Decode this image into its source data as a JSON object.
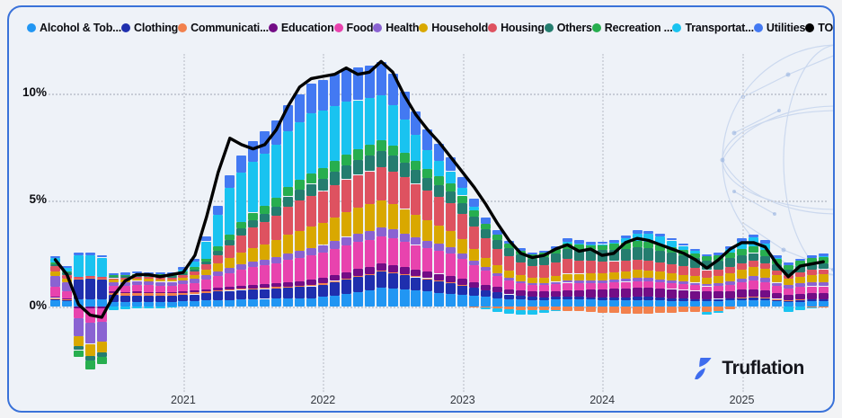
{
  "legend": {
    "items": [
      {
        "label": "Alcohol & Tob...",
        "color": "#2196f3"
      },
      {
        "label": "Clothing",
        "color": "#1f2fae"
      },
      {
        "label": "Communicati...",
        "color": "#f2814d"
      },
      {
        "label": "Education",
        "color": "#730d86"
      },
      {
        "label": "Food",
        "color": "#e843ae"
      },
      {
        "label": "Health",
        "color": "#8a63d2"
      },
      {
        "label": "Household",
        "color": "#d9a800"
      },
      {
        "label": "Housing",
        "color": "#de5260"
      },
      {
        "label": "Others",
        "color": "#247d6f"
      },
      {
        "label": "Recreation ...",
        "color": "#27ae4f"
      },
      {
        "label": "Transportat...",
        "color": "#19c3f0"
      },
      {
        "label": "Utilities",
        "color": "#4379f2"
      },
      {
        "label": "TOTAL",
        "color": "#000000"
      }
    ]
  },
  "branding": {
    "logo_text": "Truflation"
  },
  "chart_data": {
    "type": "bar",
    "subtype": "stacked-bars-with-total-line",
    "grid": "dotted",
    "legend_position": "top",
    "ylim": [
      -3.5,
      12.5
    ],
    "y_ticks": [
      {
        "label": "10%",
        "value": 10
      },
      {
        "label": "5%",
        "value": 5
      },
      {
        "label": "0%",
        "value": 0
      }
    ],
    "x_ticks": [
      {
        "label": "2021",
        "month_index": 11
      },
      {
        "label": "2022",
        "month_index": 23
      },
      {
        "label": "2023",
        "month_index": 35
      },
      {
        "label": "2024",
        "month_index": 47
      },
      {
        "label": "2025",
        "month_index": 59
      }
    ],
    "months": [
      "2020-02",
      "2020-03",
      "2020-04",
      "2020-05",
      "2020-06",
      "2020-07",
      "2020-08",
      "2020-09",
      "2020-10",
      "2020-11",
      "2020-12",
      "2021-01",
      "2021-02",
      "2021-03",
      "2021-04",
      "2021-05",
      "2021-06",
      "2021-07",
      "2021-08",
      "2021-09",
      "2021-10",
      "2021-11",
      "2021-12",
      "2022-01",
      "2022-02",
      "2022-03",
      "2022-04",
      "2022-05",
      "2022-06",
      "2022-07",
      "2022-08",
      "2022-09",
      "2022-10",
      "2022-11",
      "2022-12",
      "2023-01",
      "2023-02",
      "2023-03",
      "2023-04",
      "2023-05",
      "2023-06",
      "2023-07",
      "2023-08",
      "2023-09",
      "2023-10",
      "2023-11",
      "2023-12",
      "2024-01",
      "2024-02",
      "2024-03",
      "2024-04",
      "2024-05",
      "2024-06",
      "2024-07",
      "2024-08",
      "2024-09",
      "2024-10",
      "2024-11",
      "2024-12",
      "2025-01",
      "2025-02",
      "2025-03",
      "2025-04",
      "2025-05",
      "2025-06",
      "2025-07",
      "2025-08"
    ],
    "series": [
      {
        "name": "Alcohol & Tob...",
        "color": "#2196f3",
        "values": [
          0.3,
          0.25,
          0.35,
          0.35,
          0.35,
          0.2,
          0.2,
          0.22,
          0.22,
          0.22,
          0.22,
          0.25,
          0.25,
          0.28,
          0.3,
          0.32,
          0.34,
          0.35,
          0.36,
          0.37,
          0.38,
          0.39,
          0.4,
          0.45,
          0.52,
          0.6,
          0.68,
          0.75,
          0.9,
          0.85,
          0.8,
          0.75,
          0.7,
          0.65,
          0.6,
          0.55,
          0.5,
          0.45,
          0.4,
          0.35,
          0.32,
          0.3,
          0.3,
          0.32,
          0.35,
          0.33,
          0.32,
          0.3,
          0.3,
          0.3,
          0.3,
          0.3,
          0.28,
          0.27,
          0.26,
          0.25,
          0.25,
          0.26,
          0.28,
          0.3,
          0.3,
          0.28,
          0.24,
          0.2,
          0.22,
          0.24,
          0.25
        ]
      },
      {
        "name": "Clothing",
        "color": "#1f2fae",
        "values": [
          0.08,
          0.06,
          0.9,
          0.95,
          0.9,
          0.35,
          0.3,
          0.3,
          0.28,
          0.28,
          0.28,
          0.3,
          0.32,
          0.36,
          0.4,
          0.42,
          0.44,
          0.45,
          0.46,
          0.48,
          0.5,
          0.52,
          0.55,
          0.58,
          0.62,
          0.66,
          0.7,
          0.72,
          0.73,
          0.7,
          0.66,
          0.62,
          0.58,
          0.54,
          0.5,
          0.45,
          0.38,
          0.32,
          0.26,
          0.22,
          0.18,
          0.15,
          0.14,
          0.13,
          0.12,
          0.12,
          0.12,
          0.12,
          0.13,
          0.14,
          0.15,
          0.15,
          0.14,
          0.13,
          0.12,
          0.11,
          0.1,
          0.1,
          0.11,
          0.12,
          0.12,
          0.11,
          0.09,
          0.08,
          0.09,
          0.1,
          0.1
        ]
      },
      {
        "name": "Communicati...",
        "color": "#f2814d",
        "values": [
          0.02,
          0.02,
          0.05,
          0.05,
          0.05,
          0.1,
          0.12,
          0.12,
          0.12,
          0.12,
          0.12,
          0.1,
          0.09,
          0.08,
          0.07,
          0.06,
          0.06,
          0.06,
          0.06,
          0.06,
          0.06,
          0.06,
          0.06,
          0.06,
          0.06,
          0.06,
          0.06,
          0.06,
          0.06,
          0.06,
          0.05,
          0.05,
          0.05,
          0.05,
          0.05,
          0.02,
          -0.02,
          -0.06,
          -0.1,
          -0.13,
          -0.15,
          -0.15,
          -0.16,
          -0.18,
          -0.2,
          -0.22,
          -0.25,
          -0.28,
          -0.3,
          -0.33,
          -0.35,
          -0.33,
          -0.3,
          -0.28,
          -0.26,
          -0.25,
          -0.25,
          -0.2,
          -0.12,
          0.02,
          0.05,
          0.04,
          0.03,
          0.03,
          0.02,
          -0.02,
          -0.05
        ]
      },
      {
        "name": "Education",
        "color": "#730d86",
        "values": [
          0.08,
          0.06,
          -0.1,
          -0.1,
          -0.1,
          0.05,
          0.05,
          0.06,
          0.06,
          0.06,
          0.06,
          0.08,
          0.09,
          0.1,
          0.12,
          0.13,
          0.15,
          0.15,
          0.16,
          0.18,
          0.2,
          0.22,
          0.25,
          0.26,
          0.28,
          0.3,
          0.32,
          0.33,
          0.34,
          0.34,
          0.33,
          0.32,
          0.31,
          0.3,
          0.3,
          0.28,
          0.27,
          0.26,
          0.25,
          0.25,
          0.25,
          0.25,
          0.26,
          0.28,
          0.3,
          0.32,
          0.35,
          0.38,
          0.4,
          0.42,
          0.45,
          0.44,
          0.43,
          0.42,
          0.4,
          0.38,
          0.35,
          0.34,
          0.34,
          0.35,
          0.35,
          0.34,
          0.28,
          0.25,
          0.27,
          0.28,
          0.3
        ]
      },
      {
        "name": "Food",
        "color": "#e843ae",
        "values": [
          0.45,
          0.35,
          -0.45,
          -0.65,
          -0.6,
          0.28,
          0.3,
          0.32,
          0.32,
          0.3,
          0.3,
          0.32,
          0.36,
          0.45,
          0.55,
          0.65,
          0.75,
          0.85,
          0.9,
          0.95,
          1.05,
          1.1,
          1.15,
          1.18,
          1.22,
          1.25,
          1.26,
          1.27,
          1.27,
          1.25,
          1.2,
          1.15,
          1.1,
          1.07,
          1.05,
          0.95,
          0.8,
          0.65,
          0.52,
          0.42,
          0.35,
          0.3,
          0.3,
          0.32,
          0.35,
          0.33,
          0.32,
          0.3,
          0.3,
          0.3,
          0.3,
          0.3,
          0.29,
          0.28,
          0.27,
          0.26,
          0.25,
          0.27,
          0.3,
          0.35,
          0.4,
          0.38,
          0.32,
          0.3,
          0.32,
          0.33,
          0.3
        ]
      },
      {
        "name": "Health",
        "color": "#8a63d2",
        "values": [
          0.5,
          0.4,
          -0.85,
          -1.0,
          -0.95,
          0.15,
          0.18,
          0.18,
          0.18,
          0.18,
          0.18,
          0.18,
          0.19,
          0.2,
          0.22,
          0.23,
          0.25,
          0.25,
          0.26,
          0.28,
          0.3,
          0.32,
          0.35,
          0.36,
          0.38,
          0.4,
          0.41,
          0.42,
          0.42,
          0.41,
          0.39,
          0.37,
          0.35,
          0.33,
          0.3,
          0.25,
          0.2,
          0.16,
          0.13,
          0.11,
          0.1,
          0.1,
          0.1,
          0.11,
          0.12,
          0.12,
          0.12,
          0.13,
          0.13,
          0.14,
          0.15,
          0.15,
          0.14,
          0.14,
          0.13,
          0.12,
          0.12,
          0.13,
          0.15,
          0.18,
          0.2,
          0.19,
          0.16,
          0.15,
          0.16,
          0.18,
          0.2
        ]
      },
      {
        "name": "Household",
        "color": "#d9a800",
        "values": [
          0.2,
          0.15,
          -0.45,
          -0.55,
          -0.5,
          0.12,
          0.12,
          0.12,
          0.12,
          0.12,
          0.12,
          0.14,
          0.18,
          0.25,
          0.35,
          0.45,
          0.55,
          0.65,
          0.72,
          0.8,
          0.9,
          0.95,
          1.0,
          1.05,
          1.1,
          1.15,
          1.2,
          1.25,
          1.27,
          1.22,
          1.15,
          1.05,
          0.95,
          0.85,
          0.75,
          0.65,
          0.55,
          0.45,
          0.38,
          0.32,
          0.27,
          0.25,
          0.26,
          0.28,
          0.3,
          0.32,
          0.33,
          0.34,
          0.35,
          0.36,
          0.37,
          0.36,
          0.35,
          0.34,
          0.32,
          0.3,
          0.28,
          0.32,
          0.38,
          0.42,
          0.45,
          0.43,
          0.35,
          0.28,
          0.32,
          0.35,
          0.35
        ]
      },
      {
        "name": "Housing",
        "color": "#de5260",
        "values": [
          0.25,
          0.2,
          0.1,
          0.1,
          0.1,
          0.08,
          0.08,
          0.08,
          0.08,
          0.08,
          0.08,
          0.1,
          0.15,
          0.25,
          0.4,
          0.6,
          0.8,
          0.95,
          1.05,
          1.15,
          1.3,
          1.4,
          1.45,
          1.48,
          1.52,
          1.55,
          1.55,
          1.55,
          1.55,
          1.52,
          1.48,
          1.45,
          1.4,
          1.35,
          1.3,
          1.2,
          1.05,
          0.9,
          0.78,
          0.68,
          0.6,
          0.55,
          0.58,
          0.62,
          0.68,
          0.62,
          0.58,
          0.55,
          0.52,
          0.5,
          0.48,
          0.46,
          0.44,
          0.42,
          0.4,
          0.38,
          0.36,
          0.33,
          0.3,
          0.28,
          0.28,
          0.26,
          0.22,
          0.2,
          0.22,
          0.24,
          0.25
        ]
      },
      {
        "name": "Others",
        "color": "#247d6f",
        "values": [
          0.12,
          0.1,
          -0.2,
          -0.25,
          -0.22,
          0.08,
          0.08,
          0.08,
          0.08,
          0.08,
          0.08,
          0.1,
          0.12,
          0.15,
          0.2,
          0.26,
          0.32,
          0.35,
          0.38,
          0.42,
          0.48,
          0.52,
          0.55,
          0.58,
          0.62,
          0.66,
          0.7,
          0.73,
          0.77,
          0.74,
          0.7,
          0.65,
          0.6,
          0.57,
          0.55,
          0.5,
          0.46,
          0.42,
          0.4,
          0.38,
          0.36,
          0.35,
          0.38,
          0.42,
          0.48,
          0.5,
          0.5,
          0.52,
          0.54,
          0.56,
          0.58,
          0.57,
          0.55,
          0.53,
          0.5,
          0.47,
          0.44,
          0.42,
          0.4,
          0.38,
          0.36,
          0.34,
          0.28,
          0.24,
          0.26,
          0.27,
          0.28
        ]
      },
      {
        "name": "Recreation ...",
        "color": "#27ae4f",
        "values": [
          0.08,
          0.06,
          -0.3,
          -0.4,
          -0.35,
          0.06,
          0.06,
          0.06,
          0.06,
          0.06,
          0.06,
          0.08,
          0.1,
          0.14,
          0.2,
          0.26,
          0.32,
          0.35,
          0.38,
          0.4,
          0.45,
          0.48,
          0.5,
          0.5,
          0.5,
          0.5,
          0.5,
          0.5,
          0.5,
          0.48,
          0.46,
          0.44,
          0.42,
          0.41,
          0.4,
          0.36,
          0.32,
          0.28,
          0.25,
          0.22,
          0.2,
          0.2,
          0.21,
          0.23,
          0.25,
          0.26,
          0.26,
          0.27,
          0.28,
          0.29,
          0.3,
          0.29,
          0.28,
          0.27,
          0.25,
          0.23,
          0.21,
          0.24,
          0.28,
          0.3,
          0.32,
          0.3,
          0.26,
          0.22,
          0.26,
          0.28,
          0.3
        ]
      },
      {
        "name": "Transportat...",
        "color": "#19c3f0",
        "values": [
          0.2,
          0.15,
          1.0,
          0.95,
          0.9,
          -0.15,
          -0.12,
          -0.1,
          -0.08,
          -0.08,
          -0.05,
          0.08,
          0.25,
          0.8,
          1.5,
          2.2,
          2.3,
          2.4,
          2.45,
          2.5,
          2.6,
          2.7,
          2.8,
          2.7,
          2.6,
          2.5,
          2.3,
          2.2,
          2.11,
          1.9,
          1.55,
          1.2,
          0.9,
          0.7,
          0.55,
          0.35,
          0.15,
          -0.05,
          -0.15,
          -0.2,
          -0.25,
          -0.25,
          -0.15,
          -0.05,
          0.1,
          0.05,
          0.02,
          0.02,
          0.05,
          0.2,
          0.35,
          0.4,
          0.38,
          0.3,
          0.2,
          0.1,
          -0.15,
          -0.1,
          0.15,
          0.35,
          0.4,
          0.3,
          0.05,
          -0.25,
          -0.15,
          -0.05,
          0.05
        ]
      },
      {
        "name": "Utilities",
        "color": "#4379f2",
        "values": [
          0.08,
          0.08,
          0.15,
          0.15,
          0.12,
          0.1,
          0.1,
          0.1,
          0.1,
          0.1,
          0.1,
          0.12,
          0.15,
          0.25,
          0.4,
          0.6,
          0.8,
          0.95,
          1.05,
          1.15,
          1.25,
          1.32,
          1.4,
          1.45,
          1.5,
          1.55,
          1.55,
          1.55,
          1.55,
          1.45,
          1.3,
          1.1,
          0.95,
          0.8,
          0.65,
          0.5,
          0.38,
          0.28,
          0.2,
          0.15,
          0.12,
          0.1,
          0.1,
          0.12,
          0.15,
          0.14,
          0.13,
          0.12,
          0.12,
          0.13,
          0.14,
          0.14,
          0.13,
          0.12,
          0.11,
          0.1,
          0.1,
          0.11,
          0.13,
          0.15,
          0.16,
          0.15,
          0.12,
          0.1,
          0.11,
          0.12,
          0.12
        ]
      }
    ],
    "line": {
      "name": "TOTAL",
      "color": "#000000",
      "values": [
        2.2,
        1.5,
        0.1,
        -0.4,
        -0.5,
        0.5,
        1.2,
        1.5,
        1.5,
        1.4,
        1.5,
        1.6,
        2.4,
        4.2,
        6.3,
        7.9,
        7.6,
        7.4,
        7.6,
        8.3,
        9.4,
        10.3,
        10.7,
        10.8,
        10.9,
        11.2,
        10.9,
        11.0,
        11.5,
        11.0,
        9.9,
        9.0,
        8.3,
        7.7,
        7.0,
        6.3,
        5.6,
        4.8,
        3.9,
        3.1,
        2.5,
        2.3,
        2.4,
        2.7,
        2.9,
        2.6,
        2.7,
        2.4,
        2.5,
        3.0,
        3.2,
        3.1,
        2.9,
        2.7,
        2.5,
        2.2,
        1.8,
        2.2,
        2.7,
        3.0,
        3.0,
        2.8,
        2.0,
        1.4,
        1.9,
        2.0,
        2.1
      ]
    }
  }
}
